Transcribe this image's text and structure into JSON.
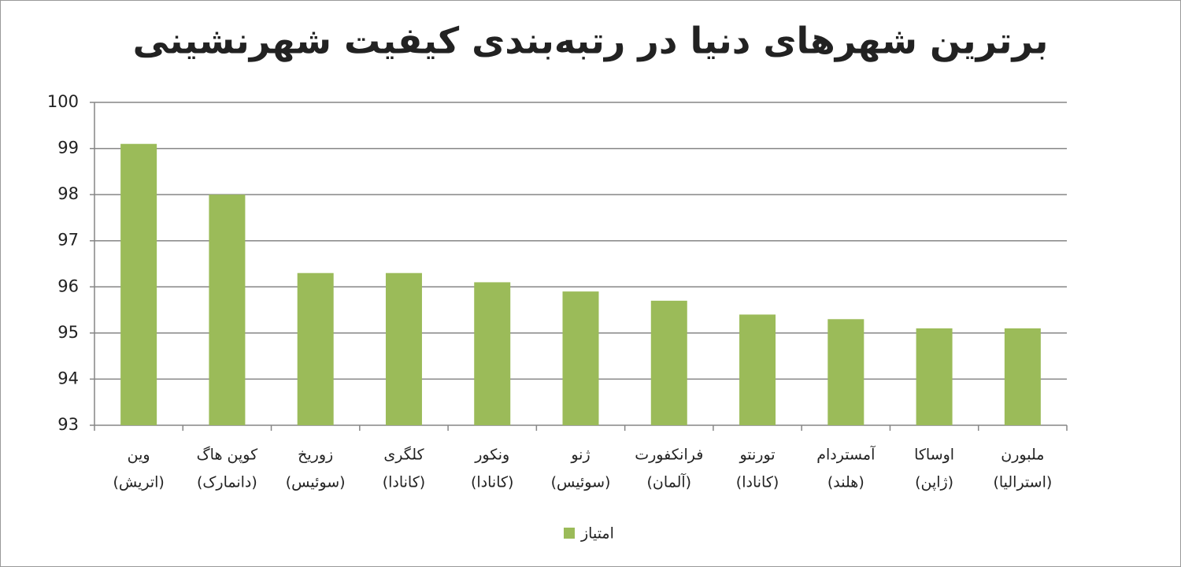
{
  "chart_data": {
    "type": "bar",
    "title": "برترین شهرهای دنیا در رتبه‌بندی کیفیت شهرنشینی",
    "categories": [
      [
        "وین",
        "(اتریش)"
      ],
      [
        "کوپن هاگ",
        "(دانمارک)"
      ],
      [
        "زوریخ",
        "(سوئیس)"
      ],
      [
        "کلگری",
        "(کانادا)"
      ],
      [
        "ونکور",
        "(کانادا)"
      ],
      [
        "ژنو",
        "(سوئیس)"
      ],
      [
        "فرانکفورت",
        "(آلمان)"
      ],
      [
        "تورنتو",
        "(کانادا)"
      ],
      [
        "آمستردام",
        "(هلند)"
      ],
      [
        "اوساکا",
        "(ژاپن)"
      ],
      [
        "ملبورن",
        "(استرالیا)"
      ]
    ],
    "series": [
      {
        "name": "امتیاز",
        "color": "#9bbb59",
        "values": [
          99.1,
          98,
          96.3,
          96.3,
          96.1,
          95.9,
          95.7,
          95.4,
          95.3,
          95.1,
          95.1
        ]
      }
    ],
    "ylim": [
      93,
      100
    ],
    "yticks": [
      93,
      94,
      95,
      96,
      97,
      98,
      99,
      100
    ],
    "grid": true,
    "legend": "bottom"
  }
}
